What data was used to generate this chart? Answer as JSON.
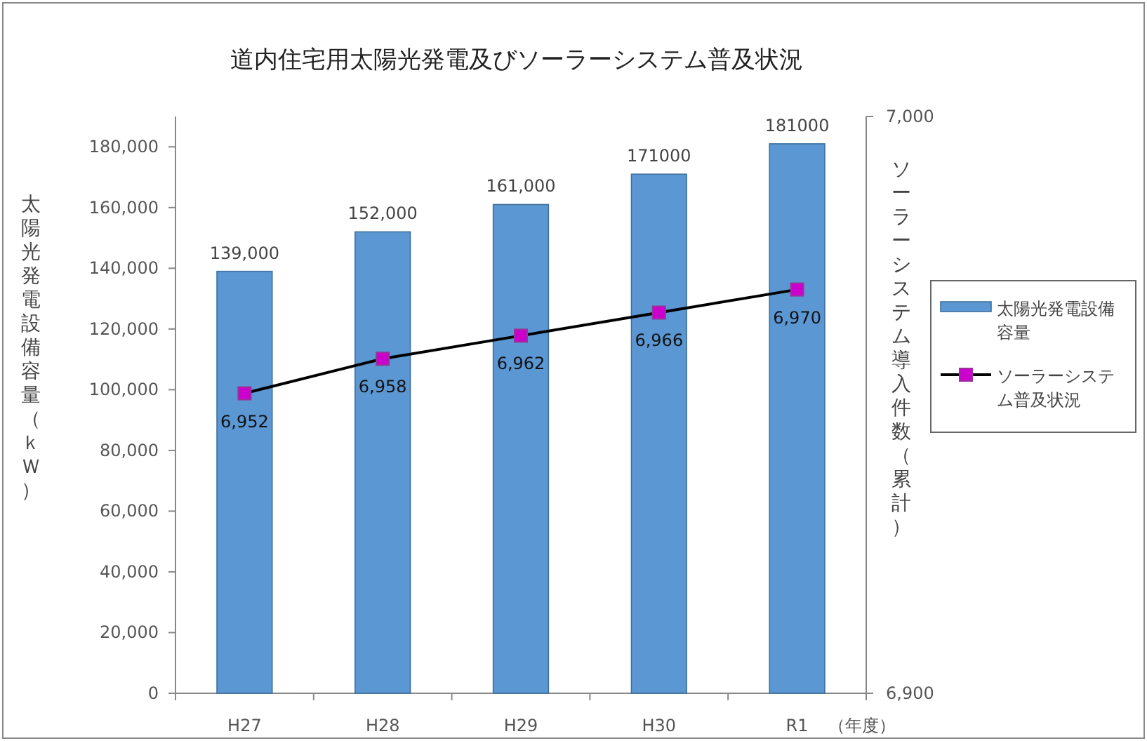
{
  "chart_data": {
    "type": "bar",
    "title": "道内住宅用太陽光発電及びソーラーシステム普及状況",
    "categories": [
      "H27",
      "H28",
      "H29",
      "H30",
      "R1"
    ],
    "xlabel": "（年度）",
    "ylabel": "太陽光発電設備容量（ｋＷ）",
    "y2label": "ソーラーシステム導入件数（累計）",
    "series": [
      {
        "name": "太陽光発電設備容量",
        "color": "#5b97d2",
        "values": [
          139000,
          152000,
          161000,
          171000,
          181000
        ],
        "value_labels": [
          "139,000",
          "152,000",
          "161,000",
          "171000",
          "181000"
        ]
      },
      {
        "name": "ソーラーシステム普及状況",
        "type": "line",
        "axis": "y2",
        "color": "#cc00cc",
        "values": [
          6952,
          6958,
          6962,
          6966,
          6970
        ],
        "value_labels": [
          "6,952",
          "6,958",
          "6,962",
          "6,966",
          "6,970"
        ]
      }
    ],
    "ylim": [
      0,
      190000
    ],
    "yticks": [
      {
        "value": 0,
        "label": "0"
      },
      {
        "value": 20000,
        "label": "20,000"
      },
      {
        "value": 40000,
        "label": "40,000"
      },
      {
        "value": 60000,
        "label": "60,000"
      },
      {
        "value": 80000,
        "label": "80,000"
      },
      {
        "value": 100000,
        "label": "100,000"
      },
      {
        "value": 120000,
        "label": "120,000"
      },
      {
        "value": 140000,
        "label": "140,000"
      },
      {
        "value": 160000,
        "label": "160,000"
      },
      {
        "value": 180000,
        "label": "180,000"
      }
    ],
    "y2lim": [
      6900,
      7000
    ],
    "y2ticks": [
      {
        "value": 6900,
        "label": "6,900"
      },
      {
        "value": 7000,
        "label": "7,000"
      }
    ],
    "marker": "square",
    "line_style": "solid",
    "grid": false,
    "legend": "right"
  }
}
